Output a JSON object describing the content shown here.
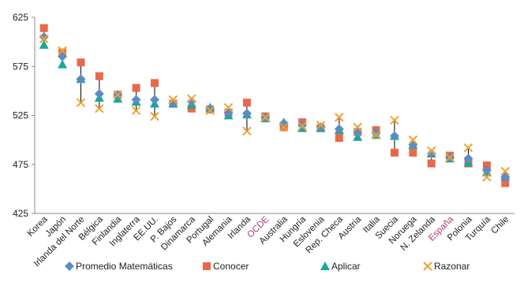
{
  "chart_data": {
    "type": "scatter",
    "ylim": [
      425,
      625
    ],
    "yticks": [
      425,
      475,
      525,
      575,
      625
    ],
    "grid": false,
    "legend_position": "bottom",
    "highlight_color": "#A0407A",
    "range_line_color": "#000000",
    "categories": [
      {
        "label": "Korea",
        "highlight": false
      },
      {
        "label": "Japón",
        "highlight": false
      },
      {
        "label": "Irlanda del Norte",
        "highlight": false
      },
      {
        "label": "Bélgica",
        "highlight": false
      },
      {
        "label": "Finlandia",
        "highlight": false
      },
      {
        "label": "Inglaterra",
        "highlight": false
      },
      {
        "label": "EE.UU.",
        "highlight": false
      },
      {
        "label": "P. Bajos",
        "highlight": false
      },
      {
        "label": "Dinamarca",
        "highlight": false
      },
      {
        "label": "Portugal",
        "highlight": false
      },
      {
        "label": "Alemania",
        "highlight": false
      },
      {
        "label": "Irlanda",
        "highlight": false
      },
      {
        "label": "OCDE",
        "highlight": true
      },
      {
        "label": "Australia",
        "highlight": false
      },
      {
        "label": "Hungría",
        "highlight": false
      },
      {
        "label": "Eslovenia",
        "highlight": false
      },
      {
        "label": "Rep. Checa",
        "highlight": false
      },
      {
        "label": "Austria",
        "highlight": false
      },
      {
        "label": "Italia",
        "highlight": false
      },
      {
        "label": "Suecia",
        "highlight": false
      },
      {
        "label": "Noruega",
        "highlight": false
      },
      {
        "label": "N. Zelanda",
        "highlight": false
      },
      {
        "label": "España",
        "highlight": true
      },
      {
        "label": "Polonia",
        "highlight": false
      },
      {
        "label": "Turquía",
        "highlight": false
      },
      {
        "label": "Chile",
        "highlight": false
      }
    ],
    "series": [
      {
        "name": "Promedio Matemáticas",
        "marker": "diamond",
        "color": "#5B8CC4",
        "values": [
          605,
          585,
          562,
          547,
          546,
          541,
          541,
          537,
          539,
          532,
          528,
          527,
          523,
          517,
          515,
          513,
          511,
          508,
          507,
          504,
          495,
          486,
          482,
          481,
          469,
          462
        ]
      },
      {
        "name": "Conocer",
        "marker": "square",
        "color": "#E8694A",
        "values": [
          614,
          589,
          579,
          565,
          546,
          553,
          558,
          537,
          532,
          531,
          528,
          538,
          524,
          513,
          518,
          512,
          502,
          508,
          510,
          487,
          487,
          476,
          484,
          476,
          474,
          456
        ]
      },
      {
        "name": "Aplicar",
        "marker": "triangle",
        "color": "#1AA89B",
        "values": [
          597,
          577,
          562,
          543,
          542,
          539,
          537,
          537,
          536,
          533,
          525,
          526,
          522,
          518,
          512,
          512,
          510,
          503,
          505,
          504,
          495,
          486,
          481,
          477,
          467,
          463
        ]
      },
      {
        "name": "Razonar",
        "marker": "x",
        "color": "#F0A030",
        "values": [
          603,
          591,
          538,
          532,
          546,
          530,
          524,
          541,
          542,
          530,
          533,
          509,
          523,
          513,
          514,
          515,
          523,
          513,
          505,
          520,
          500,
          489,
          482,
          492,
          462,
          468
        ]
      }
    ]
  }
}
